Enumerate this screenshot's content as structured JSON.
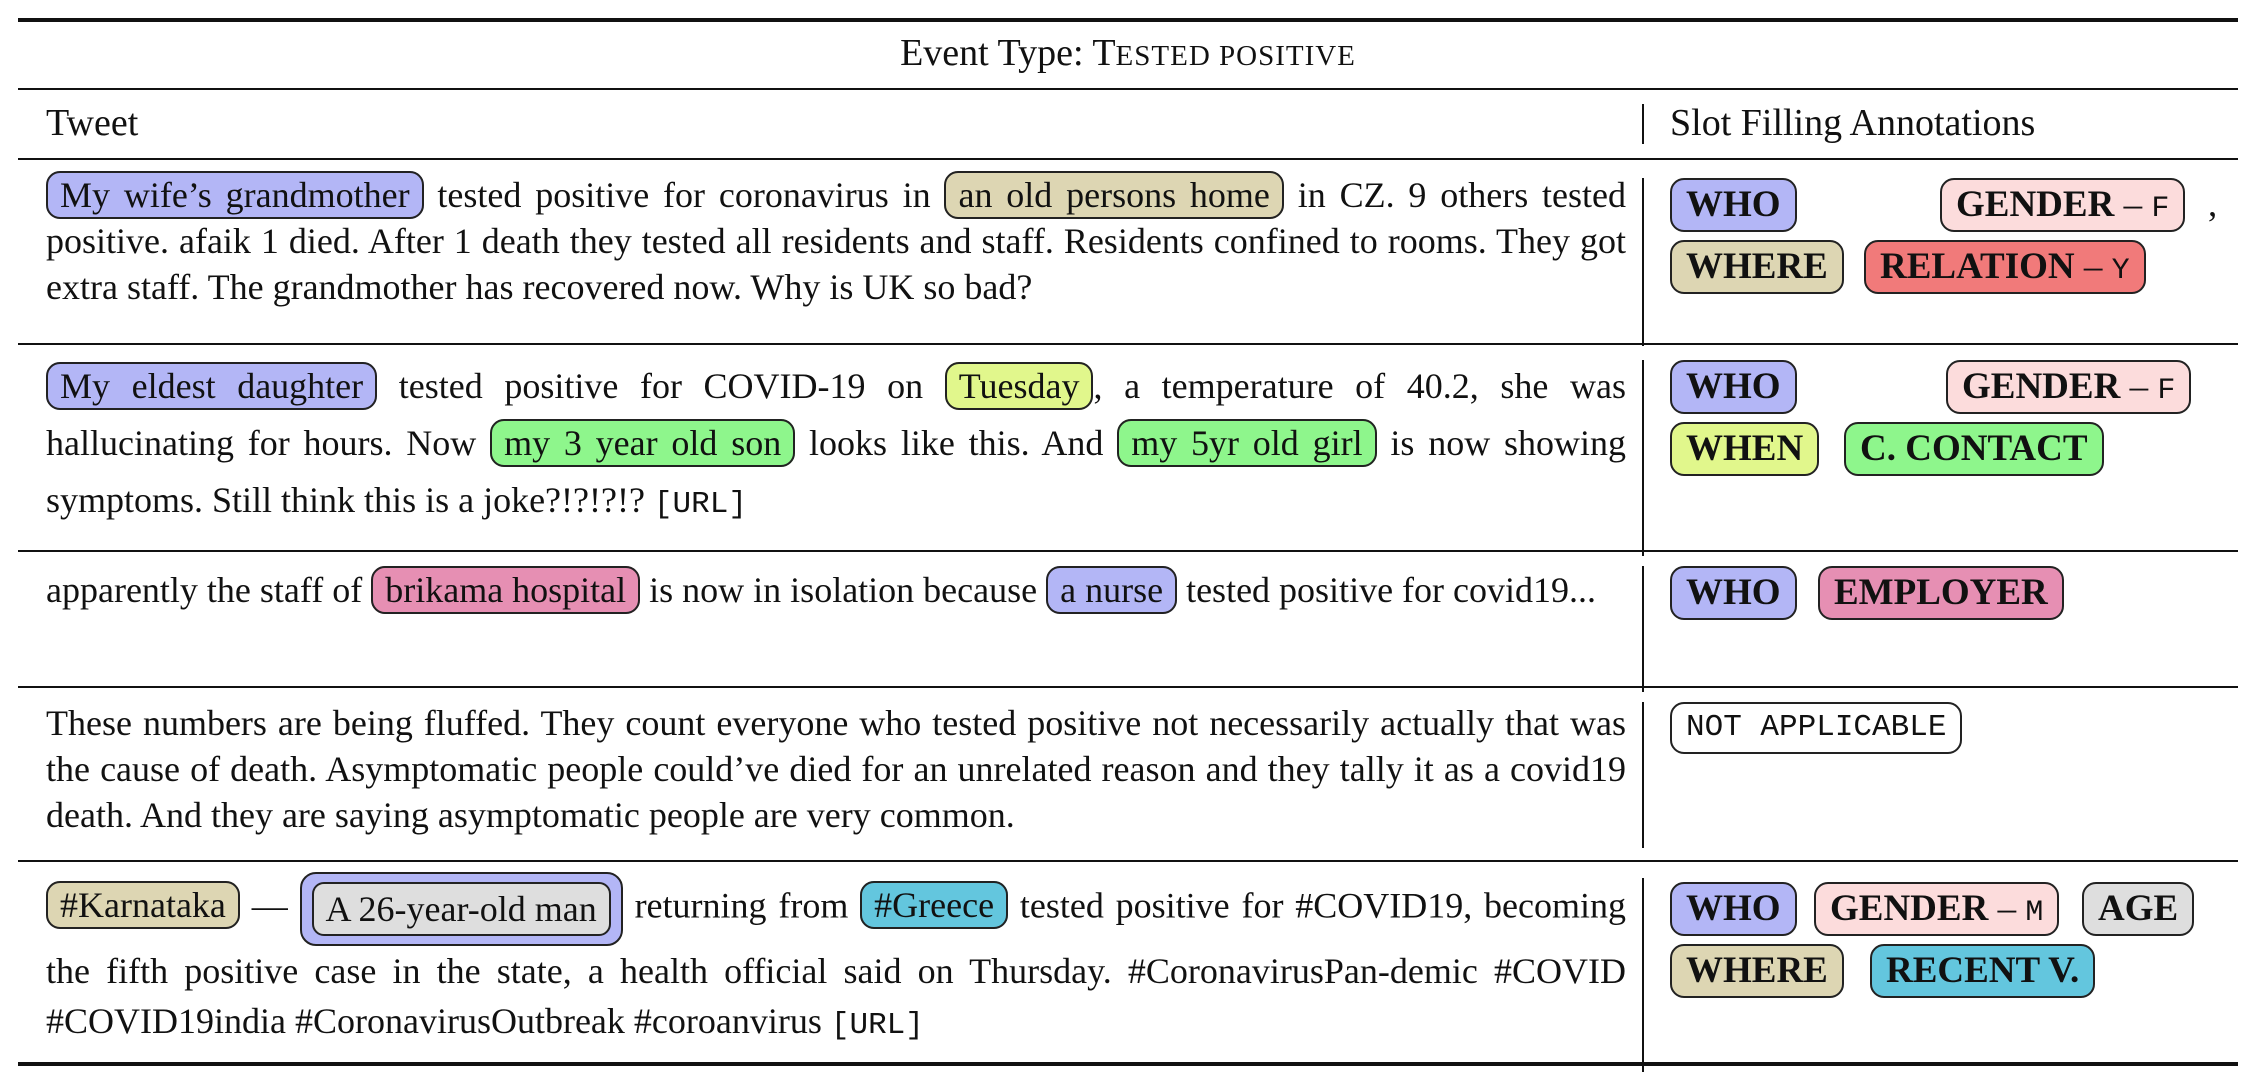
{
  "caption": {
    "prefix": "Event Type: ",
    "type_initial": "T",
    "type_rest_1": "ESTED POSITIVE"
  },
  "headers": {
    "tweet": "Tweet",
    "annotations": "Slot Filling Annotations"
  },
  "rows": [
    {
      "tweet": {
        "s1": "My wife’s grandmother",
        "t1": " tested positive for coronavirus in ",
        "s2": "an old persons home",
        "t2": " in CZ. 9 others tested positive. afaik 1 died. After 1 death they tested all residents and staff. Residents confined to rooms. They got extra staff. The grandmother has recovered now. Why is UK so bad?"
      },
      "tags": {
        "who": "WHO",
        "gender": "GENDER",
        "gender_val": "F",
        "comma": ",",
        "where": "WHERE",
        "relation": "RELATION",
        "relation_val": "Y",
        "dash": " – "
      }
    },
    {
      "tweet": {
        "s1": "My eldest daughter",
        "t1": " tested positive for COVID-19 on ",
        "s2": "Tuesday",
        "t2": ", a temperature of 40.2, she was hallucinating for hours. Now ",
        "s3": "my 3 year old son",
        "t3": " looks like this. And ",
        "s4": "my 5yr old girl",
        "t4": " is now showing symptoms. Still think this is a joke?!?!?!? ",
        "url": "[URL]"
      },
      "tags": {
        "who": "WHO",
        "gender": "GENDER",
        "gender_val": "F",
        "when": "WHEN",
        "contact": "C. CONTACT",
        "dash": " – "
      }
    },
    {
      "tweet": {
        "t0": "apparently the staff of ",
        "s1": "brikama hospital",
        "t1": " is now in isolation because ",
        "s2": "a nurse",
        "t2": " tested positive for covid19..."
      },
      "tags": {
        "who": "WHO",
        "employer": "EMPLOYER"
      }
    },
    {
      "tweet": {
        "t0": "These numbers are being fluffed. They count everyone who tested positive not necessarily actually that was the cause of death. Asymptomatic people could’ve died for an unrelated reason and they tally it as a covid19 death. And they are saying asymptomatic people are very common."
      },
      "tags": {
        "na": "NOT APPLICABLE"
      }
    },
    {
      "tweet": {
        "s1": "#Karnataka",
        "t1": " — ",
        "s2": "A 26-year-old man",
        "t2": " returning from ",
        "s3": "#Greece",
        "t3": " tested positive for #COVID19, becoming the fifth positive case in the state, a health official said on Thursday. #CoronavirusPan-demic #COVID #COVID19india #CoronavirusOutbreak #coroanvirus ",
        "url": "[URL]"
      },
      "tags": {
        "who": "WHO",
        "gender": "GENDER",
        "gender_val": "M",
        "age": "AGE",
        "where": "WHERE",
        "recent": "RECENT V.",
        "dash": " – "
      }
    }
  ],
  "colors": {
    "who": "#b3b6f6",
    "where": "#ddd6b3",
    "when": "#e1f78c",
    "close_contact": "#8ef68c",
    "employer": "#e68fb3",
    "recent_travel": "#63c6de",
    "age": "#dedede",
    "gender": "#fcdcdc",
    "relation": "#f17a7a"
  }
}
